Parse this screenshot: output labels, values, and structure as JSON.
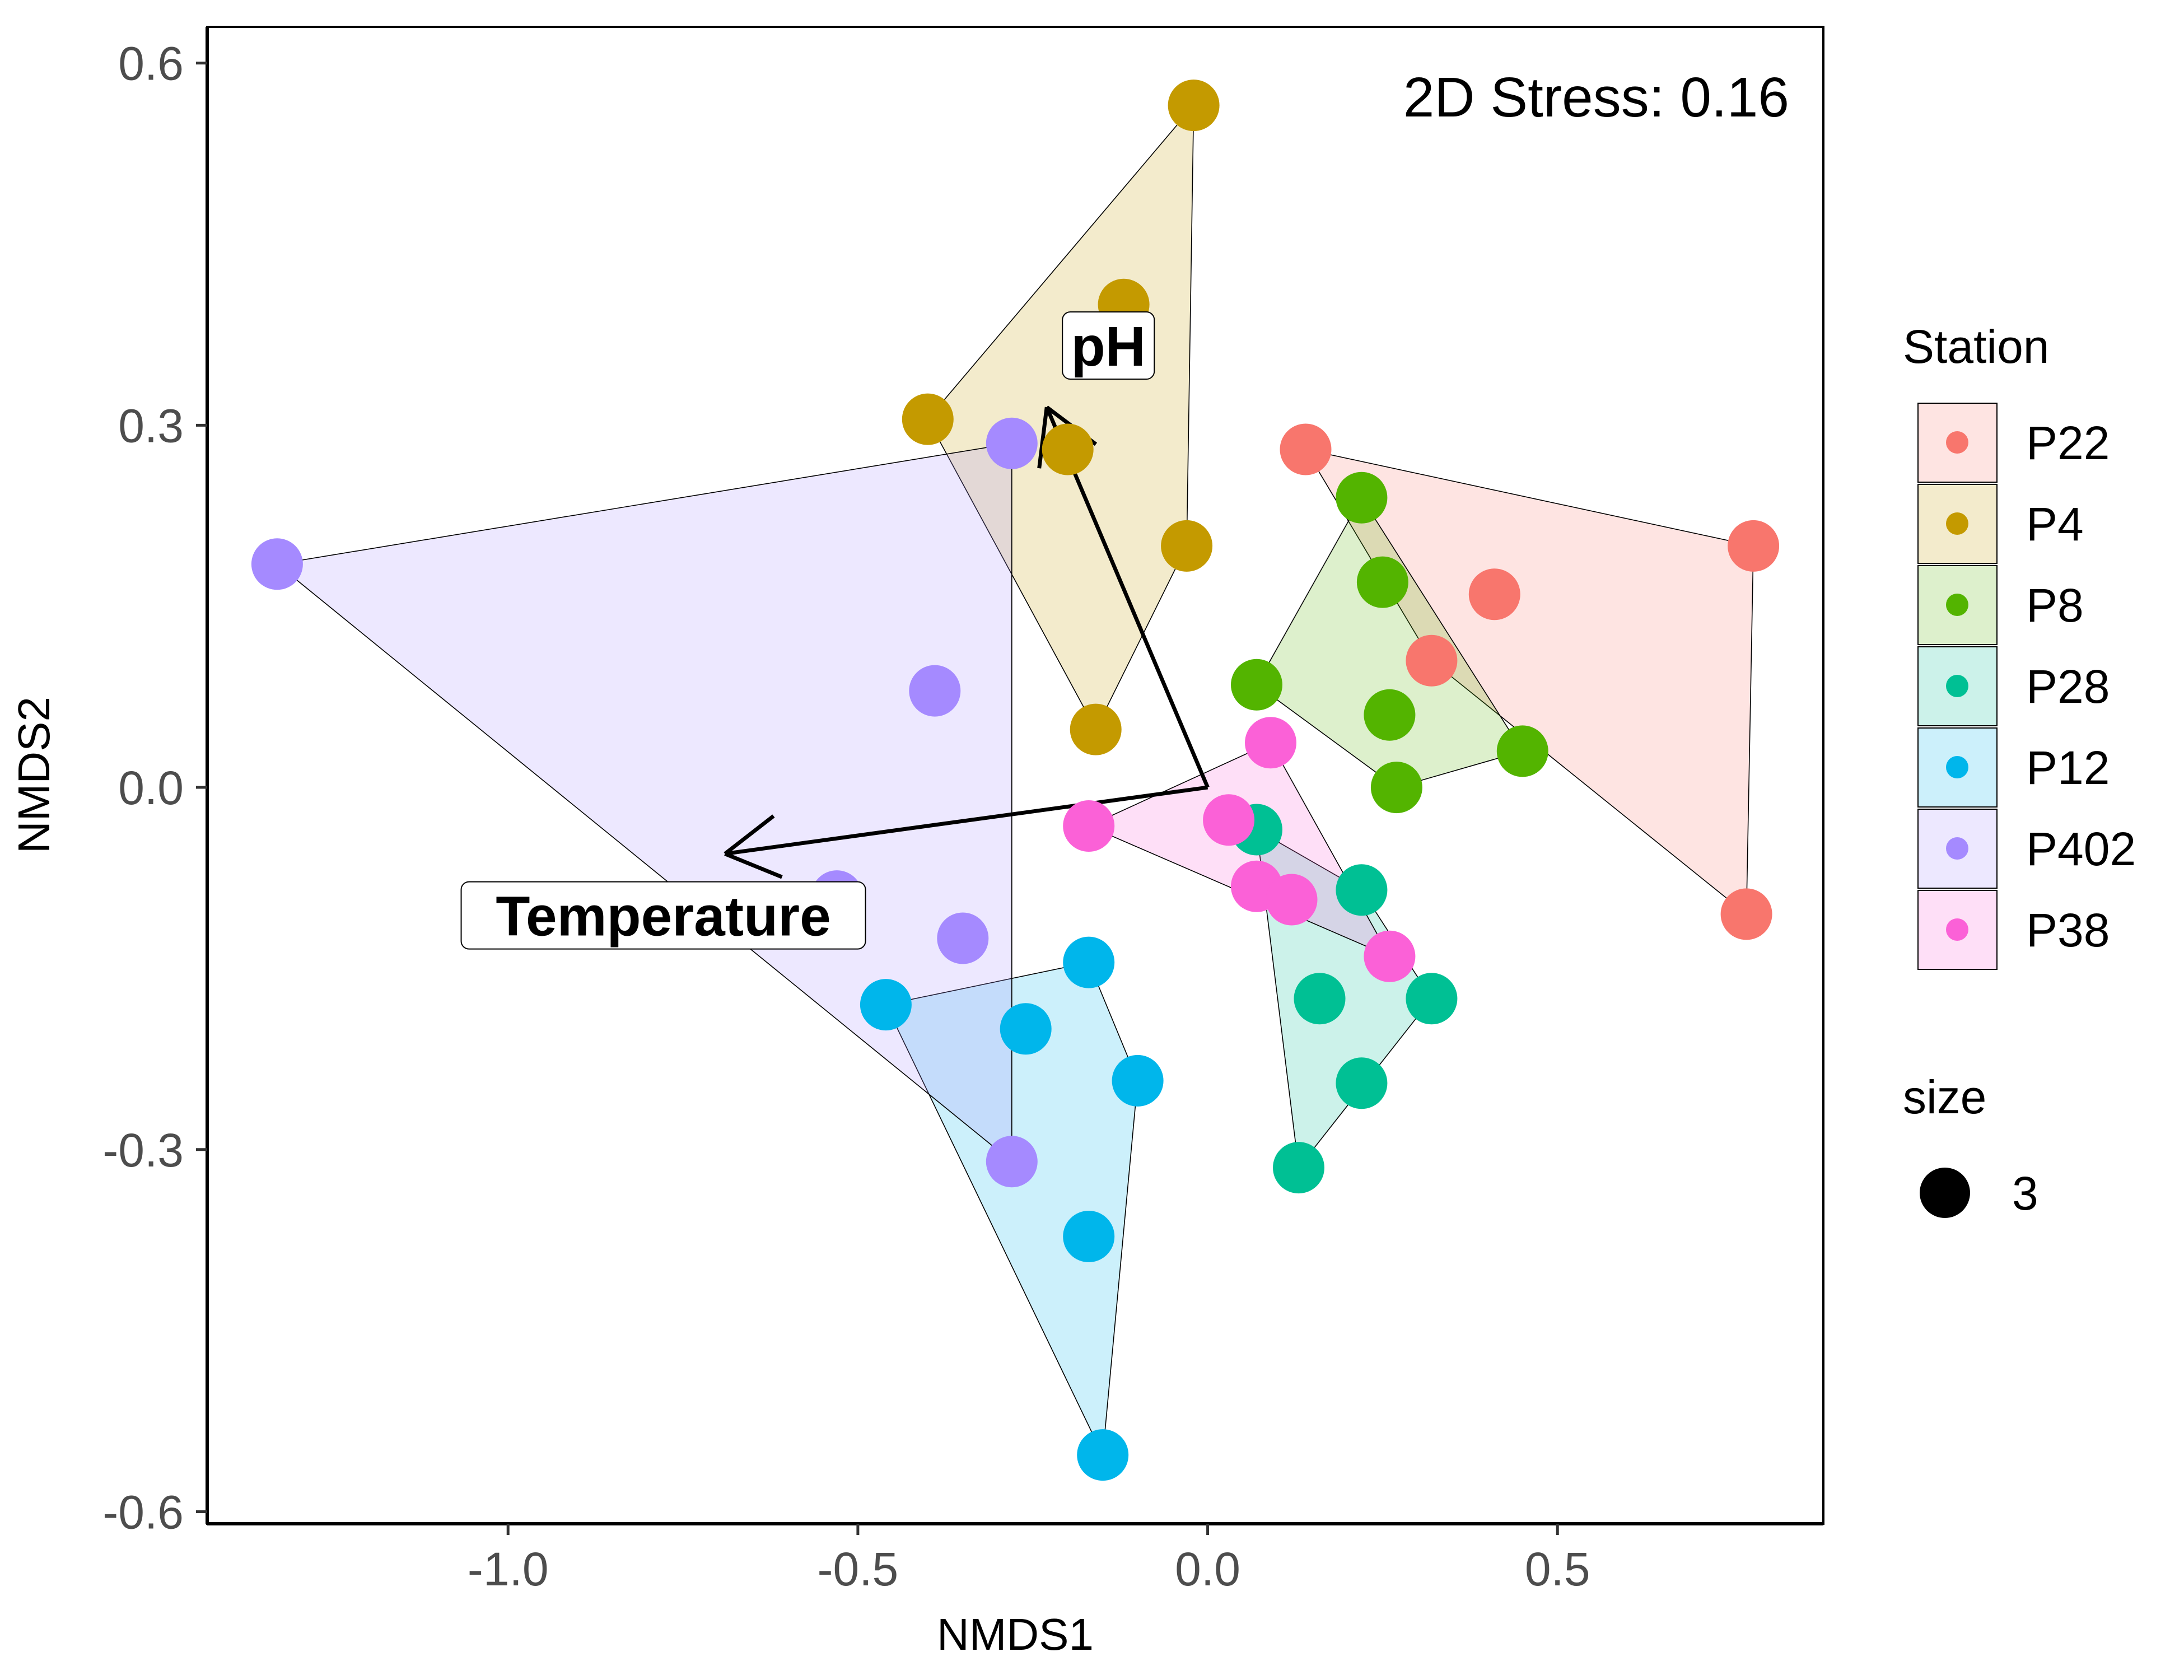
{
  "chart_data": {
    "type": "scatter",
    "xlabel": "NMDS1",
    "ylabel": "NMDS2",
    "xlim": [
      -1.43,
      0.88
    ],
    "ylim": [
      -0.61,
      0.63
    ],
    "x_ticks": [
      -1.0,
      -0.5,
      0.0,
      0.5
    ],
    "x_tick_labels": [
      "-1.0",
      "-0.5",
      "0.0",
      "0.5"
    ],
    "y_ticks": [
      -0.6,
      -0.3,
      0.0,
      0.3,
      0.6
    ],
    "y_tick_labels": [
      "-0.6",
      "-0.3",
      "0.0",
      "0.3",
      "0.6"
    ],
    "grid": false,
    "annotation": "2D Stress: 0.16",
    "legend": {
      "title": "Station",
      "placement": "right",
      "size_title": "size",
      "size_label": "3"
    },
    "hulls": true,
    "series": [
      {
        "name": "P22",
        "color": "#F8766D",
        "points": [
          [
            0.14,
            0.28
          ],
          [
            0.41,
            0.16
          ],
          [
            0.32,
            0.105
          ],
          [
            0.78,
            0.2
          ],
          [
            0.77,
            -0.105
          ]
        ],
        "hull": [
          [
            0.14,
            0.28
          ],
          [
            0.78,
            0.2
          ],
          [
            0.77,
            -0.105
          ],
          [
            0.32,
            0.105
          ]
        ]
      },
      {
        "name": "P4",
        "color": "#C49A00",
        "points": [
          [
            -0.02,
            0.565
          ],
          [
            -0.12,
            0.4
          ],
          [
            -0.4,
            0.305
          ],
          [
            -0.2,
            0.28
          ],
          [
            -0.03,
            0.2
          ],
          [
            -0.16,
            0.048
          ]
        ],
        "hull": [
          [
            -0.02,
            0.565
          ],
          [
            -0.4,
            0.305
          ],
          [
            -0.16,
            0.048
          ],
          [
            -0.03,
            0.2
          ]
        ]
      },
      {
        "name": "P8",
        "color": "#53B400",
        "points": [
          [
            0.22,
            0.24
          ],
          [
            0.25,
            0.17
          ],
          [
            0.07,
            0.085
          ],
          [
            0.26,
            0.06
          ],
          [
            0.27,
            0.0
          ],
          [
            0.45,
            0.03
          ]
        ],
        "hull": [
          [
            0.22,
            0.24
          ],
          [
            0.45,
            0.03
          ],
          [
            0.27,
            0.0
          ],
          [
            0.07,
            0.085
          ]
        ]
      },
      {
        "name": "P28",
        "color": "#00C094",
        "points": [
          [
            0.07,
            -0.035
          ],
          [
            0.22,
            -0.085
          ],
          [
            0.16,
            -0.175
          ],
          [
            0.32,
            -0.175
          ],
          [
            0.22,
            -0.245
          ],
          [
            0.13,
            -0.315
          ]
        ],
        "hull": [
          [
            0.07,
            -0.035
          ],
          [
            0.22,
            -0.085
          ],
          [
            0.32,
            -0.175
          ],
          [
            0.13,
            -0.315
          ]
        ]
      },
      {
        "name": "P12",
        "color": "#00B6EB",
        "points": [
          [
            -0.17,
            -0.145
          ],
          [
            -0.46,
            -0.18
          ],
          [
            -0.26,
            -0.2
          ],
          [
            -0.1,
            -0.243
          ],
          [
            -0.17,
            -0.372
          ],
          [
            -0.15,
            -0.553
          ]
        ],
        "hull": [
          [
            -0.17,
            -0.145
          ],
          [
            -0.1,
            -0.243
          ],
          [
            -0.15,
            -0.553
          ],
          [
            -0.46,
            -0.18
          ]
        ]
      },
      {
        "name": "P402",
        "color": "#A58AFF",
        "points": [
          [
            -1.33,
            0.185
          ],
          [
            -0.28,
            0.285
          ],
          [
            -0.39,
            0.08
          ],
          [
            -0.53,
            -0.09
          ],
          [
            -0.35,
            -0.125
          ],
          [
            -0.28,
            -0.31
          ]
        ],
        "hull": [
          [
            -1.33,
            0.185
          ],
          [
            -0.28,
            0.285
          ],
          [
            -0.28,
            -0.31
          ]
        ]
      },
      {
        "name": "P38",
        "color": "#FB61D7",
        "points": [
          [
            0.09,
            0.037
          ],
          [
            -0.17,
            -0.032
          ],
          [
            0.03,
            -0.027
          ],
          [
            0.07,
            -0.082
          ],
          [
            0.12,
            -0.093
          ],
          [
            0.26,
            -0.14
          ]
        ],
        "hull": [
          [
            0.09,
            0.037
          ],
          [
            0.26,
            -0.14
          ],
          [
            -0.17,
            -0.032
          ]
        ]
      }
    ],
    "vectors": [
      {
        "name": "pH",
        "x": -0.23,
        "y": 0.315
      },
      {
        "name": "Temperature",
        "x": -0.69,
        "y": -0.055
      }
    ]
  }
}
